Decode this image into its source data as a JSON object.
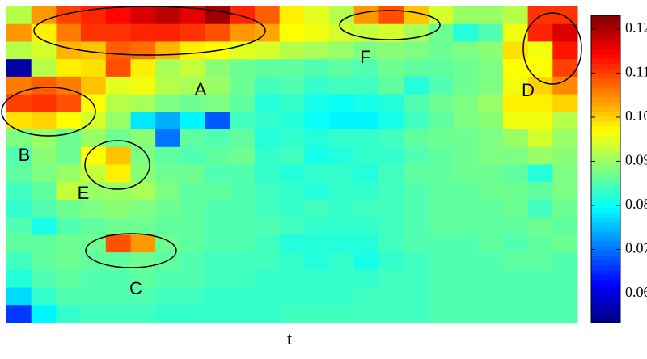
{
  "chart_data": {
    "type": "heatmap",
    "xlabel": "t",
    "colormap": "jet",
    "clim": [
      0.0534,
      0.1231
    ],
    "colorbar_ticks": [
      0.06,
      0.07,
      0.08,
      0.09,
      {
        "value": 0.1,
        "label": "0.10"
      },
      0.11,
      0.12
    ],
    "annotations": [
      "A",
      "B",
      "C",
      "D",
      "E",
      "F"
    ],
    "values": [
      [
        0.092,
        0.104,
        0.11,
        0.112,
        0.114,
        0.117,
        0.119,
        0.116,
        0.121,
        0.112,
        0.108,
        0.098,
        0.095,
        0.092,
        0.104,
        0.109,
        0.101,
        0.094,
        0.09,
        0.09,
        0.092,
        0.111,
        0.111
      ],
      [
        0.104,
        0.098,
        0.106,
        0.111,
        0.111,
        0.112,
        0.112,
        0.111,
        0.109,
        0.104,
        0.103,
        0.097,
        0.096,
        0.094,
        0.093,
        0.094,
        0.091,
        0.087,
        0.082,
        0.085,
        0.096,
        0.112,
        0.117
      ],
      [
        0.092,
        0.094,
        0.102,
        0.101,
        0.108,
        0.107,
        0.102,
        0.098,
        0.097,
        0.095,
        0.094,
        0.092,
        0.091,
        0.09,
        0.088,
        0.089,
        0.088,
        0.087,
        0.088,
        0.089,
        0.099,
        0.096,
        0.113
      ],
      [
        0.056,
        0.092,
        0.098,
        0.099,
        0.109,
        0.098,
        0.091,
        0.093,
        0.089,
        0.087,
        0.086,
        0.086,
        0.085,
        0.086,
        0.085,
        0.087,
        0.086,
        0.086,
        0.087,
        0.088,
        0.097,
        0.097,
        0.11
      ],
      [
        0.106,
        0.108,
        0.106,
        0.101,
        0.095,
        0.096,
        0.092,
        0.091,
        0.09,
        0.087,
        0.084,
        0.085,
        0.083,
        0.084,
        0.084,
        0.086,
        0.082,
        0.085,
        0.087,
        0.088,
        0.096,
        0.1,
        0.105
      ],
      [
        0.11,
        0.111,
        0.109,
        0.097,
        0.092,
        0.091,
        0.088,
        0.087,
        0.088,
        0.086,
        0.082,
        0.083,
        0.081,
        0.08,
        0.081,
        0.082,
        0.085,
        0.087,
        0.088,
        0.09,
        0.098,
        0.098,
        0.1
      ],
      [
        0.099,
        0.1,
        0.097,
        0.094,
        0.09,
        0.078,
        0.074,
        0.079,
        0.068,
        0.084,
        0.083,
        0.082,
        0.08,
        0.079,
        0.079,
        0.081,
        0.084,
        0.086,
        0.088,
        0.089,
        0.096,
        0.096,
        0.092
      ],
      [
        0.088,
        0.09,
        0.087,
        0.09,
        0.087,
        0.089,
        0.07,
        0.086,
        0.085,
        0.086,
        0.082,
        0.083,
        0.082,
        0.083,
        0.083,
        0.084,
        0.086,
        0.087,
        0.087,
        0.088,
        0.09,
        0.094,
        0.09
      ],
      [
        0.085,
        0.089,
        0.087,
        0.097,
        0.101,
        0.088,
        0.086,
        0.085,
        0.086,
        0.087,
        0.083,
        0.084,
        0.081,
        0.082,
        0.083,
        0.083,
        0.085,
        0.086,
        0.087,
        0.088,
        0.088,
        0.09,
        0.089
      ],
      [
        0.086,
        0.088,
        0.09,
        0.093,
        0.098,
        0.089,
        0.087,
        0.087,
        0.085,
        0.085,
        0.083,
        0.082,
        0.083,
        0.083,
        0.082,
        0.084,
        0.086,
        0.086,
        0.087,
        0.087,
        0.086,
        0.082,
        0.088
      ],
      [
        0.084,
        0.086,
        0.093,
        0.09,
        0.09,
        0.091,
        0.088,
        0.086,
        0.086,
        0.085,
        0.084,
        0.083,
        0.082,
        0.083,
        0.083,
        0.084,
        0.085,
        0.086,
        0.086,
        0.087,
        0.087,
        0.086,
        0.088
      ],
      [
        0.083,
        0.085,
        0.087,
        0.088,
        0.089,
        0.088,
        0.087,
        0.086,
        0.085,
        0.085,
        0.084,
        0.083,
        0.084,
        0.083,
        0.084,
        0.084,
        0.085,
        0.086,
        0.086,
        0.086,
        0.087,
        0.084,
        0.087
      ],
      [
        0.085,
        0.081,
        0.085,
        0.086,
        0.087,
        0.087,
        0.086,
        0.086,
        0.085,
        0.085,
        0.085,
        0.084,
        0.083,
        0.083,
        0.083,
        0.084,
        0.085,
        0.086,
        0.086,
        0.086,
        0.086,
        0.087,
        0.086
      ],
      [
        0.086,
        0.086,
        0.087,
        0.087,
        0.109,
        0.104,
        0.087,
        0.086,
        0.085,
        0.085,
        0.084,
        0.082,
        0.082,
        0.082,
        0.082,
        0.084,
        0.085,
        0.085,
        0.085,
        0.086,
        0.085,
        0.086,
        0.087
      ],
      [
        0.084,
        0.086,
        0.087,
        0.086,
        0.086,
        0.087,
        0.086,
        0.085,
        0.084,
        0.084,
        0.084,
        0.083,
        0.082,
        0.083,
        0.081,
        0.083,
        0.084,
        0.085,
        0.085,
        0.085,
        0.086,
        0.086,
        0.085
      ],
      [
        0.082,
        0.085,
        0.086,
        0.085,
        0.085,
        0.086,
        0.085,
        0.085,
        0.084,
        0.084,
        0.083,
        0.083,
        0.083,
        0.083,
        0.083,
        0.084,
        0.084,
        0.085,
        0.085,
        0.085,
        0.085,
        0.085,
        0.085
      ],
      [
        0.077,
        0.083,
        0.085,
        0.085,
        0.085,
        0.085,
        0.084,
        0.084,
        0.083,
        0.083,
        0.083,
        0.083,
        0.083,
        0.083,
        0.084,
        0.084,
        0.084,
        0.085,
        0.085,
        0.085,
        0.085,
        0.085,
        0.085
      ],
      [
        0.066,
        0.079,
        0.083,
        0.084,
        0.084,
        0.084,
        0.083,
        0.083,
        0.083,
        0.083,
        0.083,
        0.084,
        0.084,
        0.084,
        0.084,
        0.084,
        0.084,
        0.085,
        0.085,
        0.085,
        0.085,
        0.085,
        0.085
      ]
    ]
  }
}
